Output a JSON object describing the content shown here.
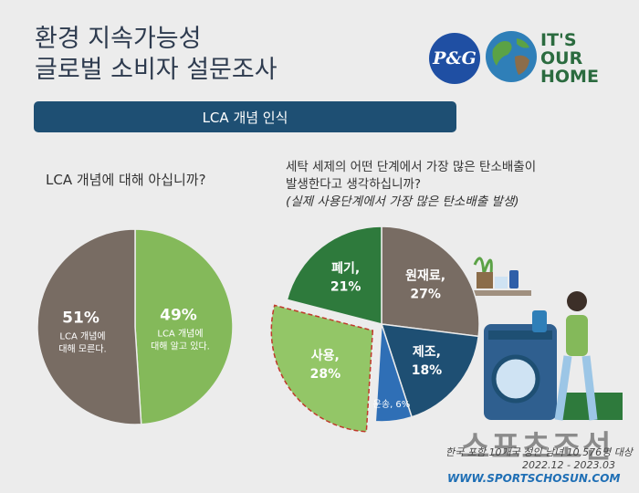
{
  "header": {
    "title_line1": "환경 지속가능성",
    "title_line2": "글로벌 소비자 설문조사",
    "logo_pg": "P&G",
    "logo_slogan": [
      "IT'S",
      "OUR",
      "HOME"
    ]
  },
  "banner": {
    "label": "LCA 개념 인식"
  },
  "questions": {
    "q1": "LCA 개념에 대해 아십니까?",
    "q2_line1": "세탁 세제의 어떤 단계에서 가장 많은 탄소배출이",
    "q2_line2": "발생한다고 생각하십니까?",
    "q2_note": "(실제 사용단계에서 가장 많은 탄소배출 발생)"
  },
  "chart_data": [
    {
      "type": "pie",
      "title": "LCA 개념에 대해 아십니까?",
      "slices": [
        {
          "label": "LCA 개념에 대해 모른다.",
          "value": 51,
          "display": "51%",
          "color": "#786c63"
        },
        {
          "label": "LCA 개념에 대해 알고 있다.",
          "value": 49,
          "display": "49%",
          "color": "#84b95a"
        }
      ],
      "label_lines": [
        [
          "LCA 개념에",
          "대해 모른다."
        ],
        [
          "LCA 개념에",
          "대해 알고 있다."
        ]
      ]
    },
    {
      "type": "pie",
      "title": "세탁 세제의 어떤 단계에서 가장 많은 탄소배출이 발생한다고 생각하십니까?",
      "slices": [
        {
          "label": "원재료,",
          "value": 27,
          "display": "27%",
          "color": "#786c63"
        },
        {
          "label": "제조,",
          "value": 18,
          "display": "18%",
          "color": "#1e4f73"
        },
        {
          "label": "운송, 6%",
          "value": 6,
          "display": "",
          "color": "#2f6fb6"
        },
        {
          "label": "사용,",
          "value": 28,
          "display": "28%",
          "color": "#93c667",
          "highlight": true
        },
        {
          "label": "폐기,",
          "value": 21,
          "display": "21%",
          "color": "#2e7a3c"
        }
      ]
    }
  ],
  "footer": {
    "source": "한국 포함 10개국 성인 남녀 10,576명 대상",
    "date": "2022.12 - 2023.03",
    "watermark": "WWW.SPORTSCHOSUN.COM",
    "watermark_big": "스포츠조선"
  }
}
